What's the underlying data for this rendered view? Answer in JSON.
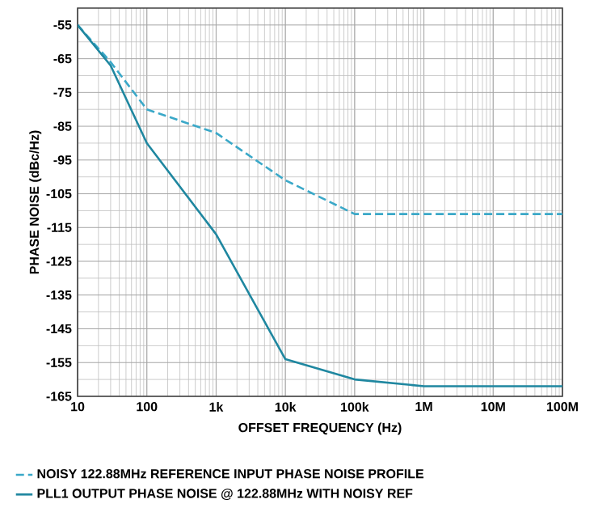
{
  "chart_data": {
    "type": "line",
    "xlabel": "OFFSET FREQUENCY (Hz)",
    "ylabel": "PHASE NOISE (dBc/Hz)",
    "log": "x",
    "grid": true,
    "legend": "bottom",
    "xlim": [
      10,
      100000000
    ],
    "ylim": [
      -165,
      -50
    ],
    "xticks": [
      10,
      100,
      {
        "value": 1000,
        "label": "1k"
      },
      {
        "value": 10000,
        "label": "10k"
      },
      {
        "value": 100000,
        "label": "100k"
      },
      {
        "value": 1000000,
        "label": "1M"
      },
      {
        "value": 10000000,
        "label": "10M"
      },
      {
        "value": 100000000,
        "label": "100M"
      }
    ],
    "yticks": [
      -165,
      -155,
      -145,
      -135,
      -125,
      -115,
      -105,
      -95,
      -85,
      -75,
      -65,
      -55
    ],
    "series": [
      {
        "name": "NOISY 122.88MHz REFERENCE INPUT PHASE NOISE PROFILE",
        "color": "#3aa8c8",
        "line_style": "dashed",
        "x": [
          10,
          30,
          100,
          1000,
          10000,
          100000,
          100000000
        ],
        "values": [
          -55,
          -66,
          -80,
          -87,
          -101,
          -111,
          -111
        ]
      },
      {
        "name": "PLL1 OUTPUT PHASE NOISE @ 122.88MHz WITH NOISY REF",
        "color": "#1f87a0",
        "line_style": "solid",
        "x": [
          10,
          30,
          100,
          1000,
          10000,
          100000,
          1000000,
          100000000
        ],
        "values": [
          -55,
          -67,
          -90,
          -117,
          -154,
          -160,
          -162,
          -162
        ]
      }
    ]
  }
}
